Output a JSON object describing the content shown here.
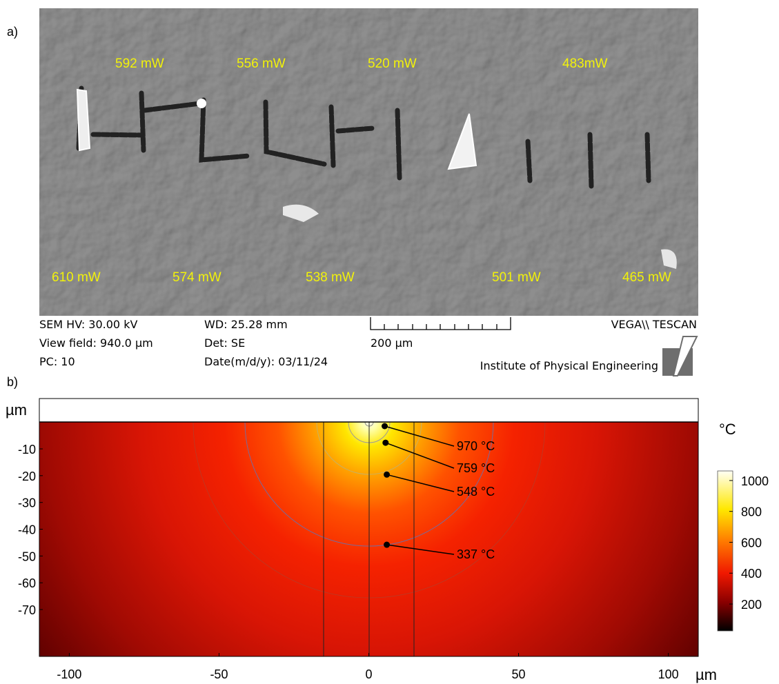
{
  "panel_a": {
    "label": "a)",
    "powers_top": [
      "592 mW",
      "556 mW",
      "520 mW",
      "483mW"
    ],
    "powers_bottom": [
      "610 mW",
      "574 mW",
      "538 mW",
      "501 mW",
      "465 mW"
    ],
    "info": {
      "hv": "SEM HV: 30.00 kV",
      "view_field": "View field: 940.0 µm",
      "pc": "PC:   10",
      "wd": "WD: 25.28 mm",
      "det": "Det: SE",
      "date": "Date(m/d/y): 03/11/24",
      "scale": "200 µm",
      "brand": "VEGA\\\\ TESCAN",
      "institute": "Institute of Physical Engineering"
    }
  },
  "panel_b": {
    "label": "b)",
    "x_unit": "µm",
    "y_unit": "µm",
    "xlim": [
      -110,
      110
    ],
    "ylim": [
      -87.5,
      8.8
    ],
    "xticks": [
      -100,
      -50,
      0,
      50,
      100
    ],
    "yticks": [
      -10,
      -20,
      -30,
      -40,
      -50,
      -60,
      -70
    ],
    "probes": [
      {
        "x": 5.3,
        "y": -1.5,
        "label": "970 °C"
      },
      {
        "x": 5.6,
        "y": -7.7,
        "label": "759 °C"
      },
      {
        "x": 6,
        "y": -19.6,
        "label": "548 °C"
      },
      {
        "x": 6,
        "y": -45.8,
        "label": "337 °C"
      }
    ],
    "colorbar": {
      "unit": "°C",
      "lim": [
        26,
        1062
      ],
      "ticks": [
        200,
        400,
        600,
        800,
        1000
      ]
    }
  }
}
